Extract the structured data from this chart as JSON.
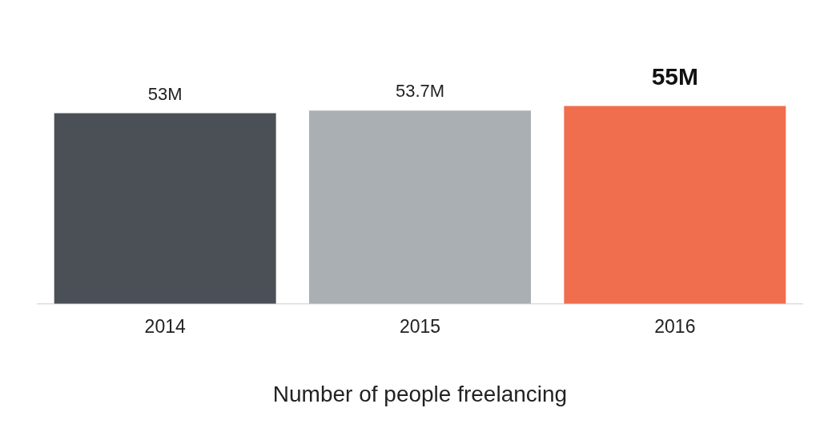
{
  "chart_data": {
    "type": "bar",
    "xlabel": "Number of people freelancing",
    "categories": [
      "2014",
      "2015",
      "2016"
    ],
    "values": [
      53,
      53.7,
      55
    ],
    "value_labels": [
      "53M",
      "53.7M",
      "55M"
    ],
    "colors": [
      "#4a5056",
      "#a9afb3",
      "#f06e4e"
    ],
    "grid": false,
    "legend": false
  }
}
